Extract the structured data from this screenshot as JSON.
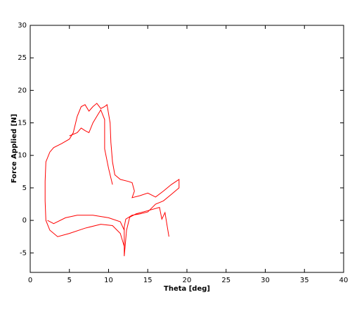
{
  "chart_data": {
    "type": "line",
    "xlabel": "Theta [deg]",
    "ylabel": "Force Applied [N]",
    "xlim": [
      0,
      40
    ],
    "ylim": [
      -8,
      30
    ],
    "xticks": [
      0,
      5,
      10,
      15,
      20,
      25,
      30,
      35,
      40
    ],
    "yticks": [
      -5,
      0,
      5,
      10,
      15,
      20,
      25,
      30
    ],
    "series": [
      {
        "color": "#ff0000",
        "x": [
          1.9,
          1.9,
          2,
          2.5,
          3,
          4,
          5,
          5.5,
          6,
          6.5,
          7,
          7.5,
          8,
          8.5,
          9,
          9.5,
          9.8,
          10.2,
          10.3,
          10.5,
          10.8,
          11.5,
          12.5,
          13,
          13.3,
          13,
          14,
          15,
          16,
          17,
          18,
          19,
          19,
          18,
          17,
          16,
          15,
          14,
          13,
          12.2,
          12,
          12,
          12.3,
          12.7,
          13.5,
          15,
          16.5,
          16.8,
          17.2,
          17.5,
          17.7,
          null,
          1.9,
          2,
          2.5,
          3.5,
          5,
          7,
          9,
          10.5,
          11.5,
          12,
          null,
          2.2,
          3,
          4.5,
          6,
          8,
          10,
          11.5,
          12,
          null,
          5,
          6,
          6.5,
          7,
          7.5,
          8,
          8.5,
          9,
          9.5,
          9.5,
          10,
          10.5
        ],
        "values": [
          3,
          6,
          9,
          10.5,
          11.2,
          11.8,
          12.5,
          13.5,
          16,
          17.5,
          17.8,
          16.8,
          17.5,
          18,
          17.2,
          17.5,
          17.8,
          15,
          12,
          9,
          7,
          6.3,
          6,
          5.8,
          4.5,
          3.5,
          3.8,
          4.2,
          3.6,
          4.5,
          5.5,
          6.3,
          5,
          4,
          3,
          2.5,
          1.3,
          1,
          0.8,
          0.2,
          -1,
          -5.5,
          -1.5,
          0.5,
          1,
          1.5,
          2,
          0.2,
          1.2,
          -1,
          -2.5,
          null,
          3,
          0,
          -1.5,
          -2.5,
          -2,
          -1.2,
          -0.6,
          -0.8,
          -2,
          -4,
          null,
          0,
          -0.5,
          0.4,
          0.8,
          0.8,
          0.4,
          -0.2,
          -1.5,
          null,
          13,
          13.5,
          14.2,
          13.8,
          13.5,
          15,
          16,
          17,
          15.5,
          11,
          8,
          5.5
        ]
      }
    ]
  }
}
